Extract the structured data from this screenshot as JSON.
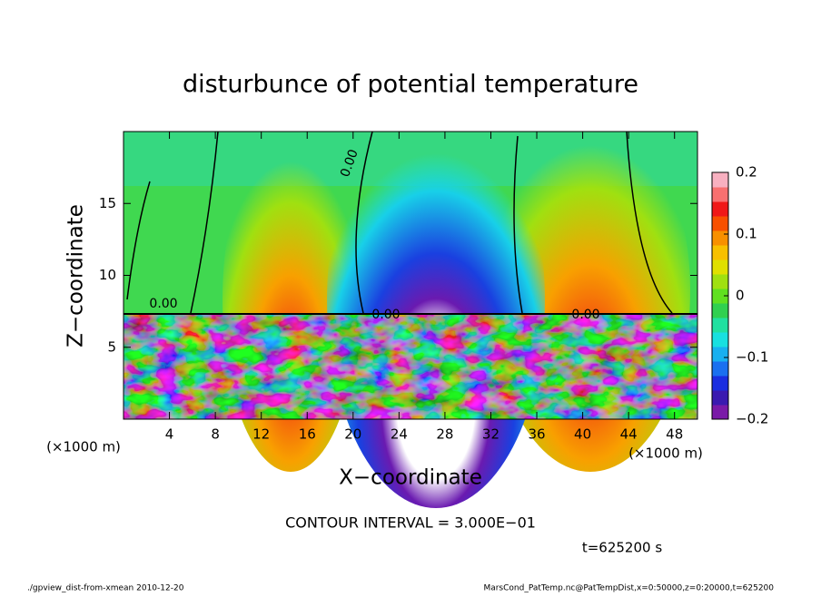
{
  "chart_data": {
    "type": "contour",
    "title": "disturbunce of potential temperature",
    "x_label": "X−coordinate",
    "y_label": "Z−coordinate",
    "x_unit": "(×1000 m)",
    "x_unit_right": "(×1000 m)",
    "xlim": [
      0,
      50
    ],
    "xticks": [
      4,
      8,
      12,
      16,
      20,
      24,
      28,
      32,
      36,
      40,
      44,
      48
    ],
    "ylim": [
      0,
      20
    ],
    "yticks": [
      5,
      10,
      15
    ],
    "colorbar": {
      "clim": [
        -0.2,
        0.2
      ],
      "ticks": [
        {
          "value": -0.2,
          "label": "−0.2"
        },
        {
          "value": -0.1,
          "label": "−0.1"
        },
        0,
        0.1,
        0.2
      ],
      "colors": [
        "#7a1aa8",
        "#3a1ab0",
        "#1a2ee0",
        "#1a70f0",
        "#18b0f0",
        "#18e0e0",
        "#20e0a0",
        "#30d050",
        "#60e020",
        "#a0e010",
        "#e0e000",
        "#f8c000",
        "#f89000",
        "#f85000",
        "#f01818",
        "#f87070",
        "#f8b0c0"
      ]
    },
    "contour_labels": [
      "0.00",
      "0.00",
      "0.00",
      "0.00"
    ],
    "contour_interval": "CONTOUR INTERVAL = 3.000E−01",
    "time": "t=625200 s",
    "footer_left": "./gpview_dist-from-xmean  2010-12-20",
    "footer_right": "MarsCond_PatTemp.nc@PatTempDist,x=0:50000,z=0:20000,t=625200"
  }
}
